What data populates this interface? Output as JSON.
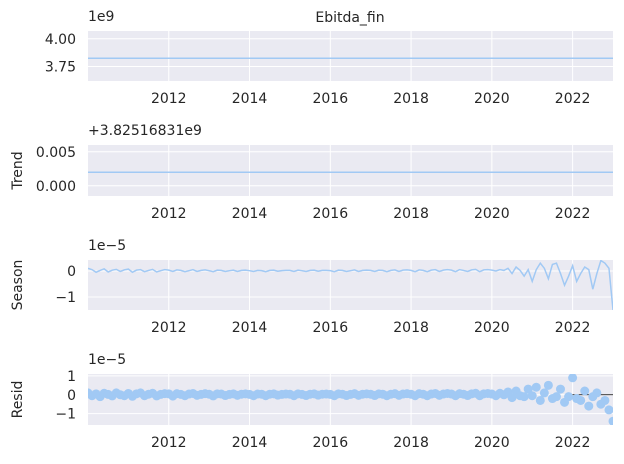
{
  "title": "Ebitda_fin",
  "colors": {
    "line": "#a1c9f4",
    "marker": "#a1c9f4",
    "axes_bg": "#eaeaf2",
    "grid": "#ffffff",
    "zero_line": "#000000",
    "text": "#262626"
  },
  "chart_data": [
    {
      "type": "line",
      "panel": "observed",
      "title": "Ebitda_fin",
      "ylabel": "",
      "offset_label": "1e9",
      "xlim": [
        2010.0,
        2023.0
      ],
      "xticks": [
        2012,
        2014,
        2016,
        2018,
        2020,
        2022
      ],
      "xtick_labels": [
        "2012",
        "2014",
        "2016",
        "2018",
        "2020",
        "2022"
      ],
      "ylim": [
        3.62,
        4.07
      ],
      "yticks": [
        3.75,
        4.0
      ],
      "ytick_labels": [
        "3.75",
        "4.00"
      ],
      "grid": true,
      "series": [
        {
          "x": [
            2010.0,
            2023.0
          ],
          "values": [
            3.825,
            3.825
          ]
        }
      ]
    },
    {
      "type": "line",
      "panel": "trend",
      "ylabel": "Trend",
      "offset_label": "+3.82516831e9",
      "xlim": [
        2010.0,
        2023.0
      ],
      "xticks": [
        2012,
        2014,
        2016,
        2018,
        2020,
        2022
      ],
      "xtick_labels": [
        "2012",
        "2014",
        "2016",
        "2018",
        "2020",
        "2022"
      ],
      "ylim": [
        -0.0015,
        0.006
      ],
      "yticks": [
        0.0,
        0.005
      ],
      "ytick_labels": [
        "0.000",
        "0.005"
      ],
      "grid": true,
      "series": [
        {
          "x": [
            2010.0,
            2023.0
          ],
          "values": [
            0.002,
            0.002
          ]
        }
      ]
    },
    {
      "type": "line",
      "panel": "season",
      "ylabel": "Season",
      "offset_label": "1e−5",
      "xlim": [
        2010.0,
        2023.0
      ],
      "xticks": [
        2012,
        2014,
        2016,
        2018,
        2020,
        2022
      ],
      "xtick_labels": [
        "2012",
        "2014",
        "2016",
        "2018",
        "2020",
        "2022"
      ],
      "ylim": [
        -1.5,
        0.42
      ],
      "yticks": [
        0,
        -1
      ],
      "ytick_labels": [
        "0",
        "−1"
      ],
      "grid": true,
      "series": [
        {
          "x": [
            2010.0,
            2010.1,
            2010.2,
            2010.3,
            2010.4,
            2010.5,
            2010.6,
            2010.7,
            2010.8,
            2010.9,
            2011.0,
            2011.1,
            2011.2,
            2011.3,
            2011.4,
            2011.5,
            2011.6,
            2011.7,
            2011.8,
            2011.9,
            2012.0,
            2012.1,
            2012.2,
            2012.3,
            2012.4,
            2012.5,
            2012.6,
            2012.7,
            2012.8,
            2012.9,
            2013.0,
            2013.1,
            2013.2,
            2013.3,
            2013.4,
            2013.5,
            2013.6,
            2013.7,
            2013.8,
            2013.9,
            2014.0,
            2014.1,
            2014.2,
            2014.3,
            2014.4,
            2014.5,
            2014.6,
            2014.7,
            2014.8,
            2014.9,
            2015.0,
            2015.1,
            2015.2,
            2015.3,
            2015.4,
            2015.5,
            2015.6,
            2015.7,
            2015.8,
            2015.9,
            2016.0,
            2016.1,
            2016.2,
            2016.3,
            2016.4,
            2016.5,
            2016.6,
            2016.7,
            2016.8,
            2016.9,
            2017.0,
            2017.1,
            2017.2,
            2017.3,
            2017.4,
            2017.5,
            2017.6,
            2017.7,
            2017.8,
            2017.9,
            2018.0,
            2018.1,
            2018.2,
            2018.3,
            2018.4,
            2018.5,
            2018.6,
            2018.7,
            2018.8,
            2018.9,
            2019.0,
            2019.1,
            2019.2,
            2019.3,
            2019.4,
            2019.5,
            2019.6,
            2019.7,
            2019.8,
            2019.9,
            2020.0,
            2020.1,
            2020.2,
            2020.3,
            2020.4,
            2020.5,
            2020.6,
            2020.7,
            2020.8,
            2020.9,
            2021.0,
            2021.1,
            2021.2,
            2021.3,
            2021.4,
            2021.5,
            2021.6,
            2021.7,
            2021.8,
            2021.9,
            2022.0,
            2022.1,
            2022.2,
            2022.3,
            2022.4,
            2022.5,
            2022.6,
            2022.7,
            2022.8,
            2022.9,
            2023.0
          ],
          "values": [
            0.1,
            0.05,
            -0.05,
            0.02,
            0.08,
            -0.04,
            0.03,
            0.06,
            -0.02,
            0.04,
            0.07,
            -0.05,
            0.03,
            0.05,
            -0.03,
            0.02,
            0.06,
            -0.04,
            0.01,
            0.05,
            0.03,
            -0.02,
            0.04,
            0.02,
            -0.03,
            0.01,
            0.05,
            -0.02,
            0.02,
            0.04,
            0.01,
            -0.03,
            0.03,
            0.02,
            -0.02,
            0.01,
            0.03,
            -0.02,
            0.02,
            0.03,
            0.01,
            -0.02,
            0.02,
            0.01,
            -0.03,
            0.02,
            0.03,
            -0.01,
            0.01,
            0.02,
            0.02,
            -0.02,
            0.03,
            0.01,
            -0.02,
            0.02,
            0.03,
            -0.01,
            0.02,
            0.02,
            0.01,
            -0.03,
            0.03,
            0.02,
            -0.02,
            0.01,
            0.04,
            -0.02,
            0.02,
            0.03,
            0.02,
            -0.02,
            0.03,
            0.02,
            -0.03,
            0.02,
            0.04,
            -0.02,
            0.03,
            0.04,
            0.02,
            -0.03,
            0.04,
            0.02,
            -0.03,
            0.03,
            0.05,
            -0.02,
            0.03,
            0.05,
            0.03,
            -0.03,
            0.05,
            0.02,
            -0.02,
            0.04,
            0.06,
            -0.03,
            0.04,
            0.05,
            0.03,
            0.0,
            0.05,
            0.02,
            0.1,
            -0.1,
            0.15,
            0.02,
            -0.2,
            0.05,
            -0.4,
            0.05,
            0.3,
            0.1,
            -0.3,
            0.25,
            0.3,
            -0.1,
            -0.55,
            -0.2,
            0.2,
            -0.4,
            -0.1,
            0.15,
            0.05,
            -0.7,
            -0.1,
            0.4,
            0.3,
            0.1,
            -1.5
          ]
        }
      ]
    },
    {
      "type": "scatter",
      "panel": "resid",
      "ylabel": "Resid",
      "offset_label": "1e−5",
      "xlim": [
        2010.0,
        2023.0
      ],
      "xticks": [
        2012,
        2014,
        2016,
        2018,
        2020,
        2022
      ],
      "xtick_labels": [
        "2012",
        "2014",
        "2016",
        "2018",
        "2020",
        "2022"
      ],
      "ylim": [
        -1.6,
        1.1
      ],
      "yticks": [
        1,
        0,
        -1
      ],
      "ytick_labels": [
        "1",
        "0",
        "−1"
      ],
      "grid": true,
      "zero_line_x": [
        2021.9,
        2023.0
      ],
      "series": [
        {
          "x": [
            2010.0,
            2010.1,
            2010.2,
            2010.3,
            2010.4,
            2010.5,
            2010.6,
            2010.7,
            2010.8,
            2010.9,
            2011.0,
            2011.1,
            2011.2,
            2011.3,
            2011.4,
            2011.5,
            2011.6,
            2011.7,
            2011.8,
            2011.9,
            2012.0,
            2012.1,
            2012.2,
            2012.3,
            2012.4,
            2012.5,
            2012.6,
            2012.7,
            2012.8,
            2012.9,
            2013.0,
            2013.1,
            2013.2,
            2013.3,
            2013.4,
            2013.5,
            2013.6,
            2013.7,
            2013.8,
            2013.9,
            2014.0,
            2014.1,
            2014.2,
            2014.3,
            2014.4,
            2014.5,
            2014.6,
            2014.7,
            2014.8,
            2014.9,
            2015.0,
            2015.1,
            2015.2,
            2015.3,
            2015.4,
            2015.5,
            2015.6,
            2015.7,
            2015.8,
            2015.9,
            2016.0,
            2016.1,
            2016.2,
            2016.3,
            2016.4,
            2016.5,
            2016.6,
            2016.7,
            2016.8,
            2016.9,
            2017.0,
            2017.1,
            2017.2,
            2017.3,
            2017.4,
            2017.5,
            2017.6,
            2017.7,
            2017.8,
            2017.9,
            2018.0,
            2018.1,
            2018.2,
            2018.3,
            2018.4,
            2018.5,
            2018.6,
            2018.7,
            2018.8,
            2018.9,
            2019.0,
            2019.1,
            2019.2,
            2019.3,
            2019.4,
            2019.5,
            2019.6,
            2019.7,
            2019.8,
            2019.9,
            2020.0,
            2020.1,
            2020.2,
            2020.3,
            2020.4,
            2020.5,
            2020.6,
            2020.7,
            2020.8,
            2020.9,
            2021.0,
            2021.1,
            2021.2,
            2021.3,
            2021.4,
            2021.5,
            2021.6,
            2021.7,
            2021.8,
            2021.9,
            2022.0,
            2022.1,
            2022.2,
            2022.3,
            2022.4,
            2022.5,
            2022.6,
            2022.7,
            2022.8,
            2022.9,
            2023.0
          ],
          "values": [
            0.1,
            -0.05,
            0.05,
            -0.1,
            0.08,
            0.02,
            -0.06,
            0.1,
            0.0,
            -0.05,
            0.07,
            -0.08,
            0.05,
            0.1,
            -0.05,
            0.03,
            0.08,
            -0.06,
            0.02,
            0.06,
            0.05,
            -0.07,
            0.06,
            0.02,
            -0.05,
            0.04,
            0.07,
            -0.03,
            0.02,
            0.06,
            0.03,
            -0.06,
            0.05,
            0.04,
            -0.04,
            0.02,
            0.05,
            -0.03,
            0.03,
            0.05,
            0.02,
            -0.05,
            0.04,
            0.03,
            -0.05,
            0.03,
            0.05,
            -0.02,
            0.02,
            0.04,
            0.03,
            -0.05,
            0.05,
            0.02,
            -0.04,
            0.03,
            0.05,
            -0.02,
            0.03,
            0.04,
            0.02,
            -0.05,
            0.05,
            0.03,
            -0.04,
            0.02,
            0.06,
            -0.03,
            0.03,
            0.05,
            0.03,
            -0.04,
            0.05,
            0.03,
            -0.05,
            0.03,
            0.06,
            -0.03,
            0.04,
            0.06,
            0.03,
            -0.05,
            0.06,
            0.03,
            -0.05,
            0.04,
            0.07,
            -0.03,
            0.04,
            0.07,
            0.04,
            -0.05,
            0.06,
            0.03,
            -0.04,
            0.05,
            0.08,
            -0.05,
            0.05,
            0.07,
            0.04,
            -0.05,
            0.08,
            0.0,
            0.15,
            -0.15,
            0.2,
            -0.05,
            -0.1,
            0.3,
            -0.05,
            0.4,
            -0.3,
            0.1,
            0.5,
            -0.2,
            -0.1,
            0.3,
            -0.4,
            -0.1,
            0.9,
            -0.2,
            -0.3,
            0.2,
            -0.6,
            -0.1,
            0.1,
            -0.5,
            -0.3,
            -0.8,
            -1.4
          ]
        }
      ]
    }
  ]
}
